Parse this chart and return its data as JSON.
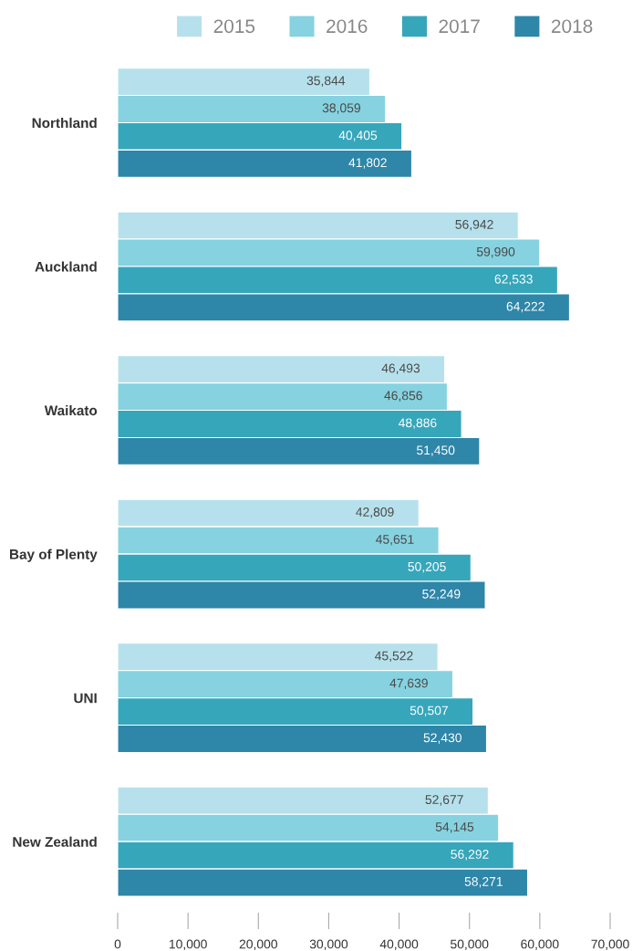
{
  "chart_data": {
    "type": "bar",
    "orientation": "horizontal",
    "categories": [
      "Northland",
      "Auckland",
      "Waikato",
      "Bay of Plenty",
      "UNI",
      "New Zealand"
    ],
    "series": [
      {
        "name": "2015",
        "color": "#b6e1ec",
        "values": [
          35844,
          56942,
          46493,
          42809,
          45522,
          52677
        ],
        "value_labels": [
          "35,844",
          "56,942",
          "46,493",
          "42,809",
          "45,522",
          "52,677"
        ]
      },
      {
        "name": "2016",
        "color": "#86d2e0",
        "values": [
          38059,
          59990,
          46856,
          45651,
          47639,
          54145
        ],
        "value_labels": [
          "38,059",
          "59,990",
          "46,856",
          "45,651",
          "47,639",
          "54,145"
        ]
      },
      {
        "name": "2017",
        "color": "#36a6bb",
        "values": [
          40405,
          62533,
          48886,
          50205,
          50507,
          56292
        ],
        "value_labels": [
          "40,405",
          "62,533",
          "48,886",
          "50,205",
          "50,507",
          "56,292"
        ]
      },
      {
        "name": "2018",
        "color": "#2e86a8",
        "values": [
          41802,
          64222,
          51450,
          52249,
          52430,
          58271
        ],
        "value_labels": [
          "41,802",
          "64,222",
          "51,450",
          "52,249",
          "52,430",
          "58,271"
        ]
      }
    ],
    "xlim": [
      0,
      70000
    ],
    "xticks": [
      {
        "value": 0,
        "label": "0"
      },
      {
        "value": 10000,
        "label": "10,000"
      },
      {
        "value": 20000,
        "label": "20,000"
      },
      {
        "value": 30000,
        "label": "30,000"
      },
      {
        "value": 40000,
        "label": "40,000"
      },
      {
        "value": 50000,
        "label": "50,000"
      },
      {
        "value": 60000,
        "label": "60,000"
      },
      {
        "value": 70000,
        "label": "70,000"
      }
    ],
    "legend": "top right",
    "grid": false
  }
}
